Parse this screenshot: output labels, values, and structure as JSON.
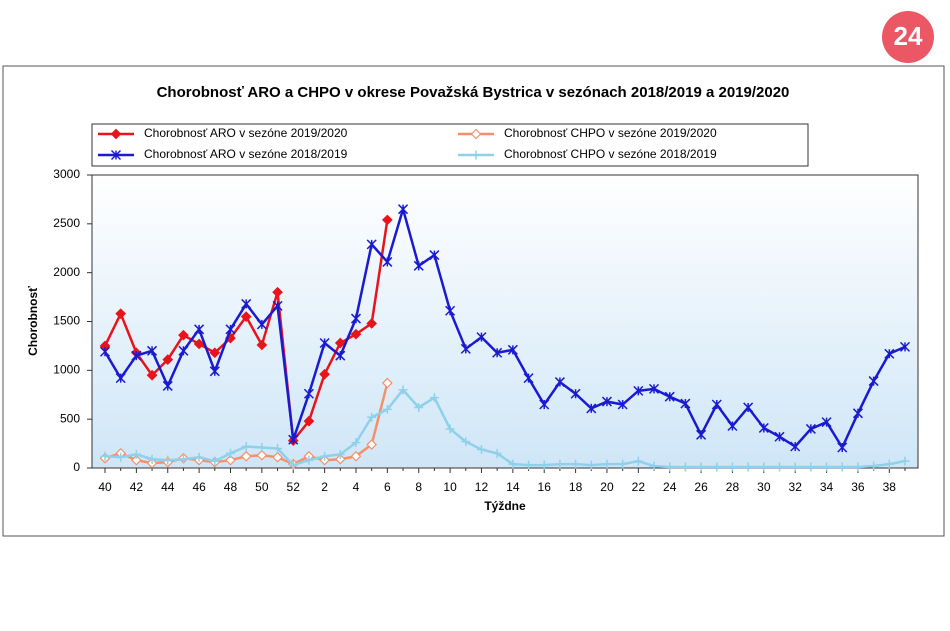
{
  "logo": "24",
  "chart_data": {
    "type": "line",
    "title": "Chorobnosť ARO a CHPO v okrese Považská Bystrica v sezónach 2018/2019 a 2019/2020",
    "x_label": "Týždne",
    "y_label": "Chorobnosť",
    "categories": [
      "40",
      null,
      "42",
      null,
      "44",
      null,
      "46",
      null,
      "48",
      null,
      "50",
      null,
      "52",
      null,
      "2",
      null,
      "4",
      null,
      "6",
      null,
      "8",
      null,
      "10",
      null,
      "12",
      null,
      "14",
      null,
      "16",
      null,
      "18",
      null,
      "20",
      null,
      "22",
      null,
      "24",
      null,
      "26",
      null,
      "28",
      null,
      "30",
      null,
      "32",
      null,
      "34",
      null,
      "36",
      null,
      "38",
      null
    ],
    "ylim": [
      0,
      3000
    ],
    "yticks": [
      0,
      500,
      1000,
      1500,
      2000,
      2500,
      3000
    ],
    "grid": false,
    "series": [
      {
        "name": "Chorobnosť ARO v sezóne 2019/2020",
        "color": "#e8141c",
        "marker": "diamond-filled",
        "values": [
          1250,
          1580,
          1180,
          950,
          1110,
          1360,
          1270,
          1180,
          1330,
          1550,
          1260,
          1800,
          280,
          480,
          960,
          1280,
          1370,
          1480,
          2540,
          null,
          null,
          null,
          null,
          null,
          null,
          null,
          null,
          null,
          null,
          null,
          null,
          null,
          null,
          null,
          null,
          null,
          null,
          null,
          null,
          null,
          null,
          null,
          null,
          null,
          null,
          null,
          null,
          null,
          null,
          null,
          null,
          null
        ]
      },
      {
        "name": "Chorobnosť CHPO v sezóne 2019/2020",
        "color": "#f4906a",
        "marker": "diamond-open",
        "values": [
          100,
          150,
          80,
          50,
          60,
          100,
          80,
          60,
          80,
          120,
          130,
          110,
          40,
          120,
          80,
          90,
          120,
          240,
          870,
          null,
          null,
          null,
          null,
          null,
          null,
          null,
          null,
          null,
          null,
          null,
          null,
          null,
          null,
          null,
          null,
          null,
          null,
          null,
          null,
          null,
          null,
          null,
          null,
          null,
          null,
          null,
          null,
          null,
          null,
          null,
          null,
          null
        ]
      },
      {
        "name": "Chorobnosť ARO v sezóne 2018/2019",
        "color": "#1a1ad0",
        "marker": "asterisk",
        "values": [
          1190,
          920,
          1150,
          1200,
          840,
          1200,
          1420,
          990,
          1420,
          1680,
          1470,
          1660,
          290,
          760,
          1280,
          1150,
          1530,
          2290,
          2110,
          2650,
          2070,
          2180,
          1610,
          1220,
          1340,
          1180,
          1210,
          920,
          650,
          880,
          760,
          610,
          680,
          650,
          790,
          810,
          730,
          660,
          340,
          650,
          430,
          620,
          410,
          320,
          220,
          400,
          470,
          210,
          560,
          890,
          1170,
          1240
        ]
      },
      {
        "name": "Chorobnosť CHPO v sezóne 2018/2019",
        "color": "#8fd0ea",
        "marker": "plus",
        "values": [
          120,
          110,
          140,
          90,
          80,
          90,
          110,
          70,
          150,
          220,
          210,
          200,
          30,
          80,
          120,
          140,
          260,
          520,
          600,
          800,
          620,
          720,
          400,
          270,
          190,
          150,
          40,
          30,
          30,
          40,
          40,
          30,
          40,
          40,
          70,
          20,
          10,
          10,
          10,
          10,
          10,
          10,
          10,
          10,
          10,
          10,
          10,
          10,
          10,
          20,
          40,
          70
        ]
      }
    ]
  }
}
